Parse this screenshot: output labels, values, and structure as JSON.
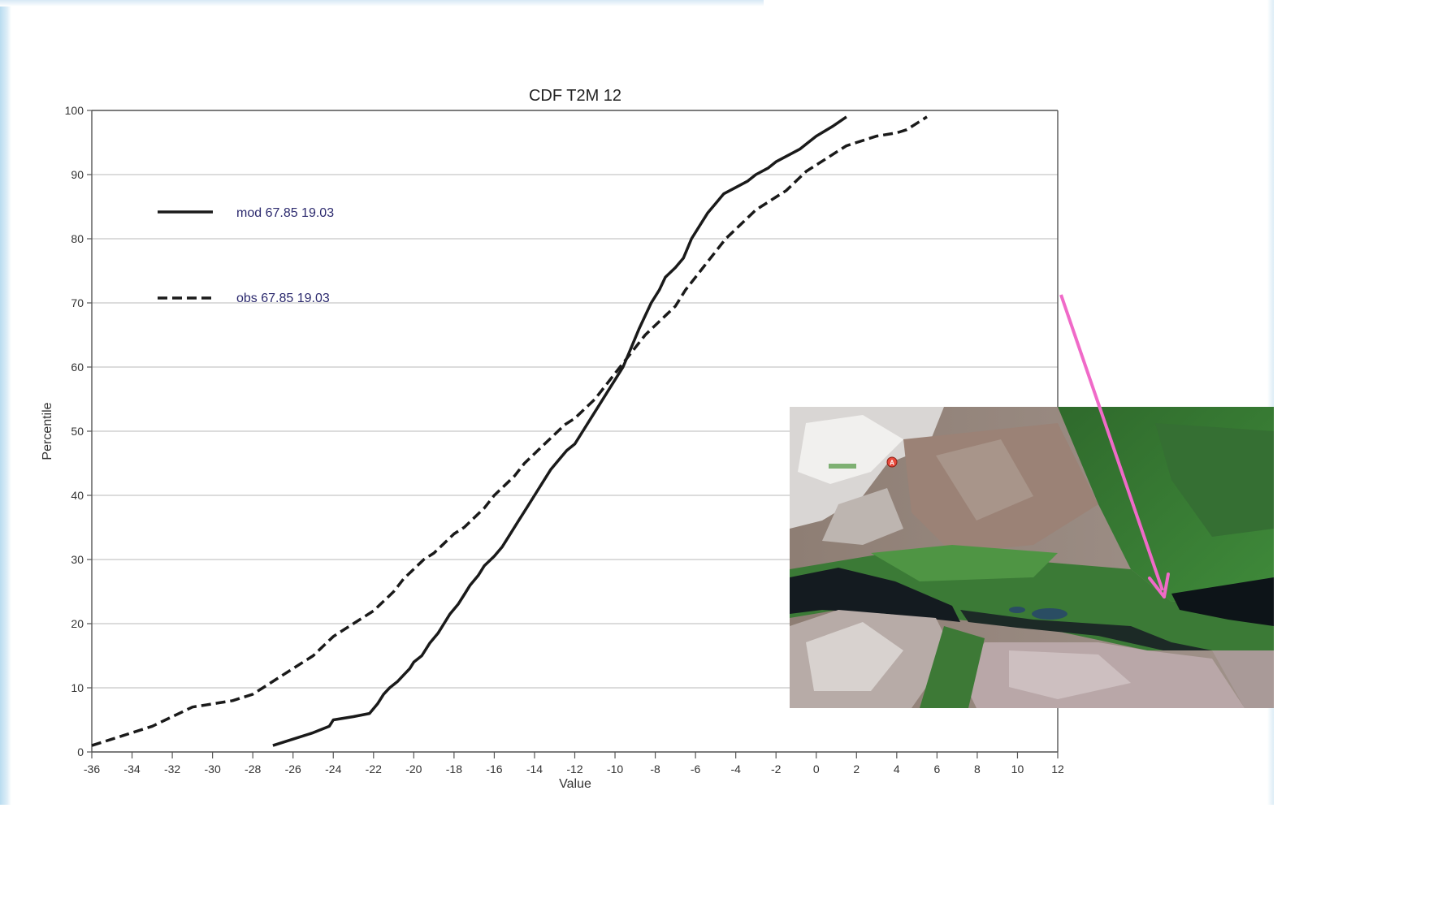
{
  "chart_data": {
    "type": "line",
    "title": "CDF T2M 12",
    "xlabel": "Value",
    "ylabel": "Percentile",
    "xlim": [
      -36,
      12
    ],
    "ylim": [
      0,
      100
    ],
    "xticks": [
      -36,
      -34,
      -32,
      -30,
      -28,
      -26,
      -24,
      -22,
      -20,
      -18,
      -16,
      -14,
      -12,
      -10,
      -8,
      -6,
      -4,
      -2,
      0,
      2,
      4,
      6,
      8,
      10,
      12
    ],
    "yticks": [
      0,
      10,
      20,
      30,
      40,
      50,
      60,
      70,
      80,
      90,
      100
    ],
    "grid": "horizontal",
    "legend_position": "top-left",
    "series": [
      {
        "name": "mod 67.85 19.03",
        "style": "solid",
        "color": "#1a1a1a",
        "x": [
          -27,
          -26,
          -25,
          -24.2,
          -24,
          -23,
          -22.2,
          -21.8,
          -21.5,
          -21.2,
          -20.8,
          -20.5,
          -20.2,
          -20,
          -19.6,
          -19.2,
          -18.8,
          -18.5,
          -18.2,
          -17.8,
          -17.5,
          -17.2,
          -16.8,
          -16.5,
          -16,
          -15.6,
          -15.2,
          -14.8,
          -14.4,
          -14,
          -13.6,
          -13.2,
          -12.8,
          -12.4,
          -12,
          -11.6,
          -11.2,
          -10.8,
          -10.4,
          -10,
          -9.6,
          -9.2,
          -8.8,
          -8.5,
          -8.2,
          -7.8,
          -7.5,
          -7,
          -6.6,
          -6.2,
          -5.8,
          -5.4,
          -5,
          -4.6,
          -4,
          -3.4,
          -3,
          -2.4,
          -2,
          -1.4,
          -0.8,
          -0.4,
          0,
          0.8,
          1.5
        ],
        "y": [
          1,
          2,
          3,
          4,
          5,
          5.5,
          6,
          7.5,
          9,
          10,
          11,
          12,
          13,
          14,
          15,
          17,
          18.5,
          20,
          21.5,
          23,
          24.5,
          26,
          27.5,
          29,
          30.5,
          32,
          34,
          36,
          38,
          40,
          42,
          44,
          45.5,
          47,
          48,
          50,
          52,
          54,
          56,
          58,
          60,
          63,
          66,
          68,
          70,
          72,
          74,
          75.5,
          77,
          80,
          82,
          84,
          85.5,
          87,
          88,
          89,
          90,
          91,
          92,
          93,
          94,
          95,
          96,
          97.5,
          99
        ]
      },
      {
        "name": "obs 67.85 19.03",
        "style": "dashed",
        "color": "#1a1a1a",
        "x": [
          -36,
          -35,
          -34,
          -33,
          -32,
          -31,
          -30,
          -29,
          -28,
          -27.5,
          -27,
          -26.5,
          -26,
          -25,
          -24.5,
          -24,
          -23.5,
          -23,
          -22.5,
          -22,
          -21.5,
          -21,
          -20.5,
          -20,
          -19.5,
          -19,
          -18.5,
          -18,
          -17.5,
          -17,
          -16.5,
          -16,
          -15.5,
          -15,
          -14.5,
          -14,
          -13.5,
          -13,
          -12.5,
          -12,
          -11.5,
          -11,
          -10.5,
          -10,
          -9.5,
          -9,
          -8.5,
          -8,
          -7.5,
          -7,
          -6.5,
          -6,
          -5.5,
          -5,
          -4.5,
          -4,
          -3.5,
          -3,
          -2.5,
          -2,
          -1.5,
          -1,
          -0.5,
          0,
          0.5,
          1,
          1.5,
          2,
          3,
          4,
          4.5,
          5,
          5.5
        ],
        "y": [
          1,
          2,
          3,
          4,
          5.5,
          7,
          7.5,
          8,
          9,
          10,
          11,
          12,
          13,
          15,
          16.5,
          18,
          19,
          20,
          21,
          22,
          23.5,
          25,
          27,
          28.5,
          30,
          31,
          32.5,
          34,
          35,
          36.5,
          38,
          40,
          41.5,
          43,
          45,
          46.5,
          48,
          49.5,
          51,
          52,
          53.5,
          55,
          57,
          59,
          61,
          63,
          65,
          66.5,
          68,
          69.5,
          72,
          74,
          76,
          78,
          80,
          81.5,
          83,
          84.5,
          85.5,
          86.5,
          87.5,
          89,
          90.5,
          91.5,
          92.5,
          93.5,
          94.5,
          95,
          96,
          96.5,
          97,
          98,
          99
        ]
      }
    ]
  },
  "callout_arrow": {
    "color": "#f06ac8"
  },
  "inset": {
    "type": "satellite-map-image",
    "marker_label": "A",
    "marker_color": "#e84a3c"
  }
}
